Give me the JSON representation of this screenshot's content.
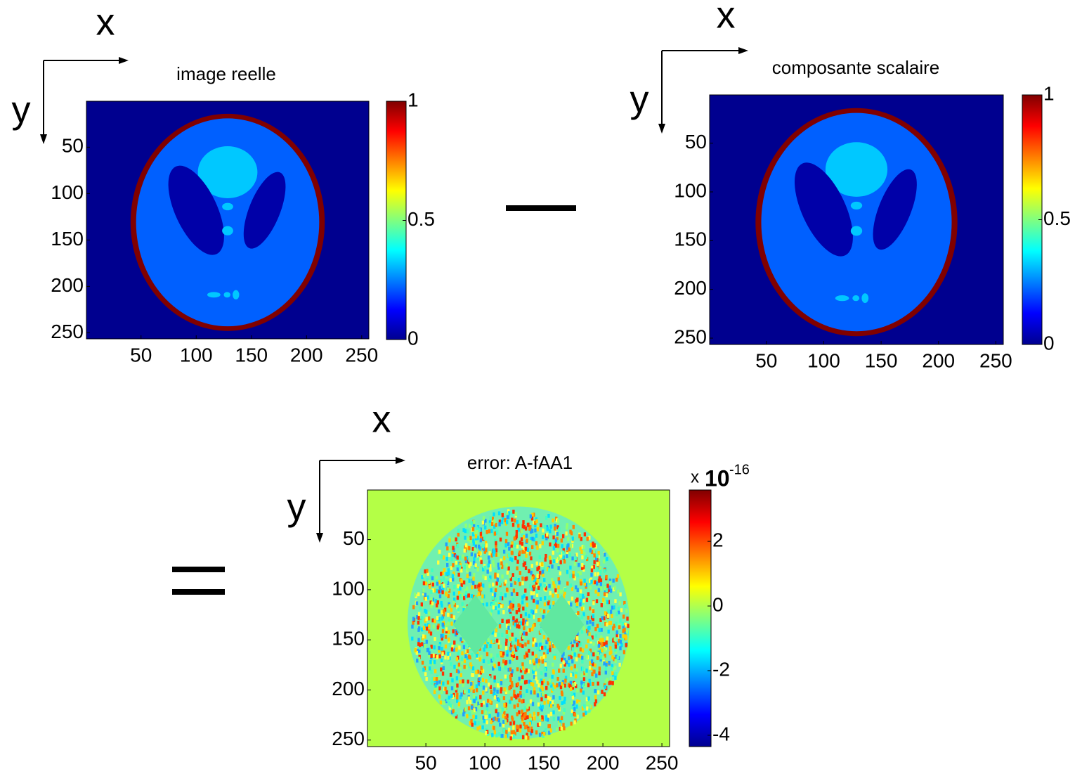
{
  "chart_data": [
    {
      "type": "image",
      "title": "image reelle",
      "axis_labels": {
        "x": "x",
        "y": "y"
      },
      "xlim": [
        0.5,
        256.5
      ],
      "ylim": [
        0.5,
        256.5
      ],
      "y_reversed": true,
      "xticks": [
        50,
        100,
        150,
        200,
        250
      ],
      "yticks": [
        50,
        100,
        150,
        200,
        250
      ],
      "colorbar": {
        "clim": [
          0,
          1
        ],
        "ticks": [
          0,
          0.5,
          1
        ]
      }
    },
    {
      "type": "image",
      "title": "composante scalaire",
      "axis_labels": {
        "x": "x",
        "y": "y"
      },
      "xlim": [
        0.5,
        256.5
      ],
      "ylim": [
        0.5,
        256.5
      ],
      "y_reversed": true,
      "xticks": [
        50,
        100,
        150,
        200,
        250
      ],
      "yticks": [
        50,
        100,
        150,
        200,
        250
      ],
      "colorbar": {
        "clim": [
          0,
          1
        ],
        "ticks": [
          0,
          0.5,
          1
        ]
      }
    },
    {
      "type": "error-image",
      "title": "error: A-fAA1",
      "axis_labels": {
        "x": "x",
        "y": "y"
      },
      "xlim": [
        0.5,
        256.5
      ],
      "ylim": [
        0.5,
        256.5
      ],
      "y_reversed": true,
      "xticks": [
        50,
        100,
        150,
        200,
        250
      ],
      "yticks": [
        50,
        100,
        150,
        200,
        250
      ],
      "colorbar": {
        "clim": [
          -4.35,
          3.59
        ],
        "ticks": [
          -4,
          -2,
          0,
          2
        ],
        "scale": {
          "prefix": "x",
          "base": "10",
          "exponent": "-16"
        }
      }
    }
  ]
}
